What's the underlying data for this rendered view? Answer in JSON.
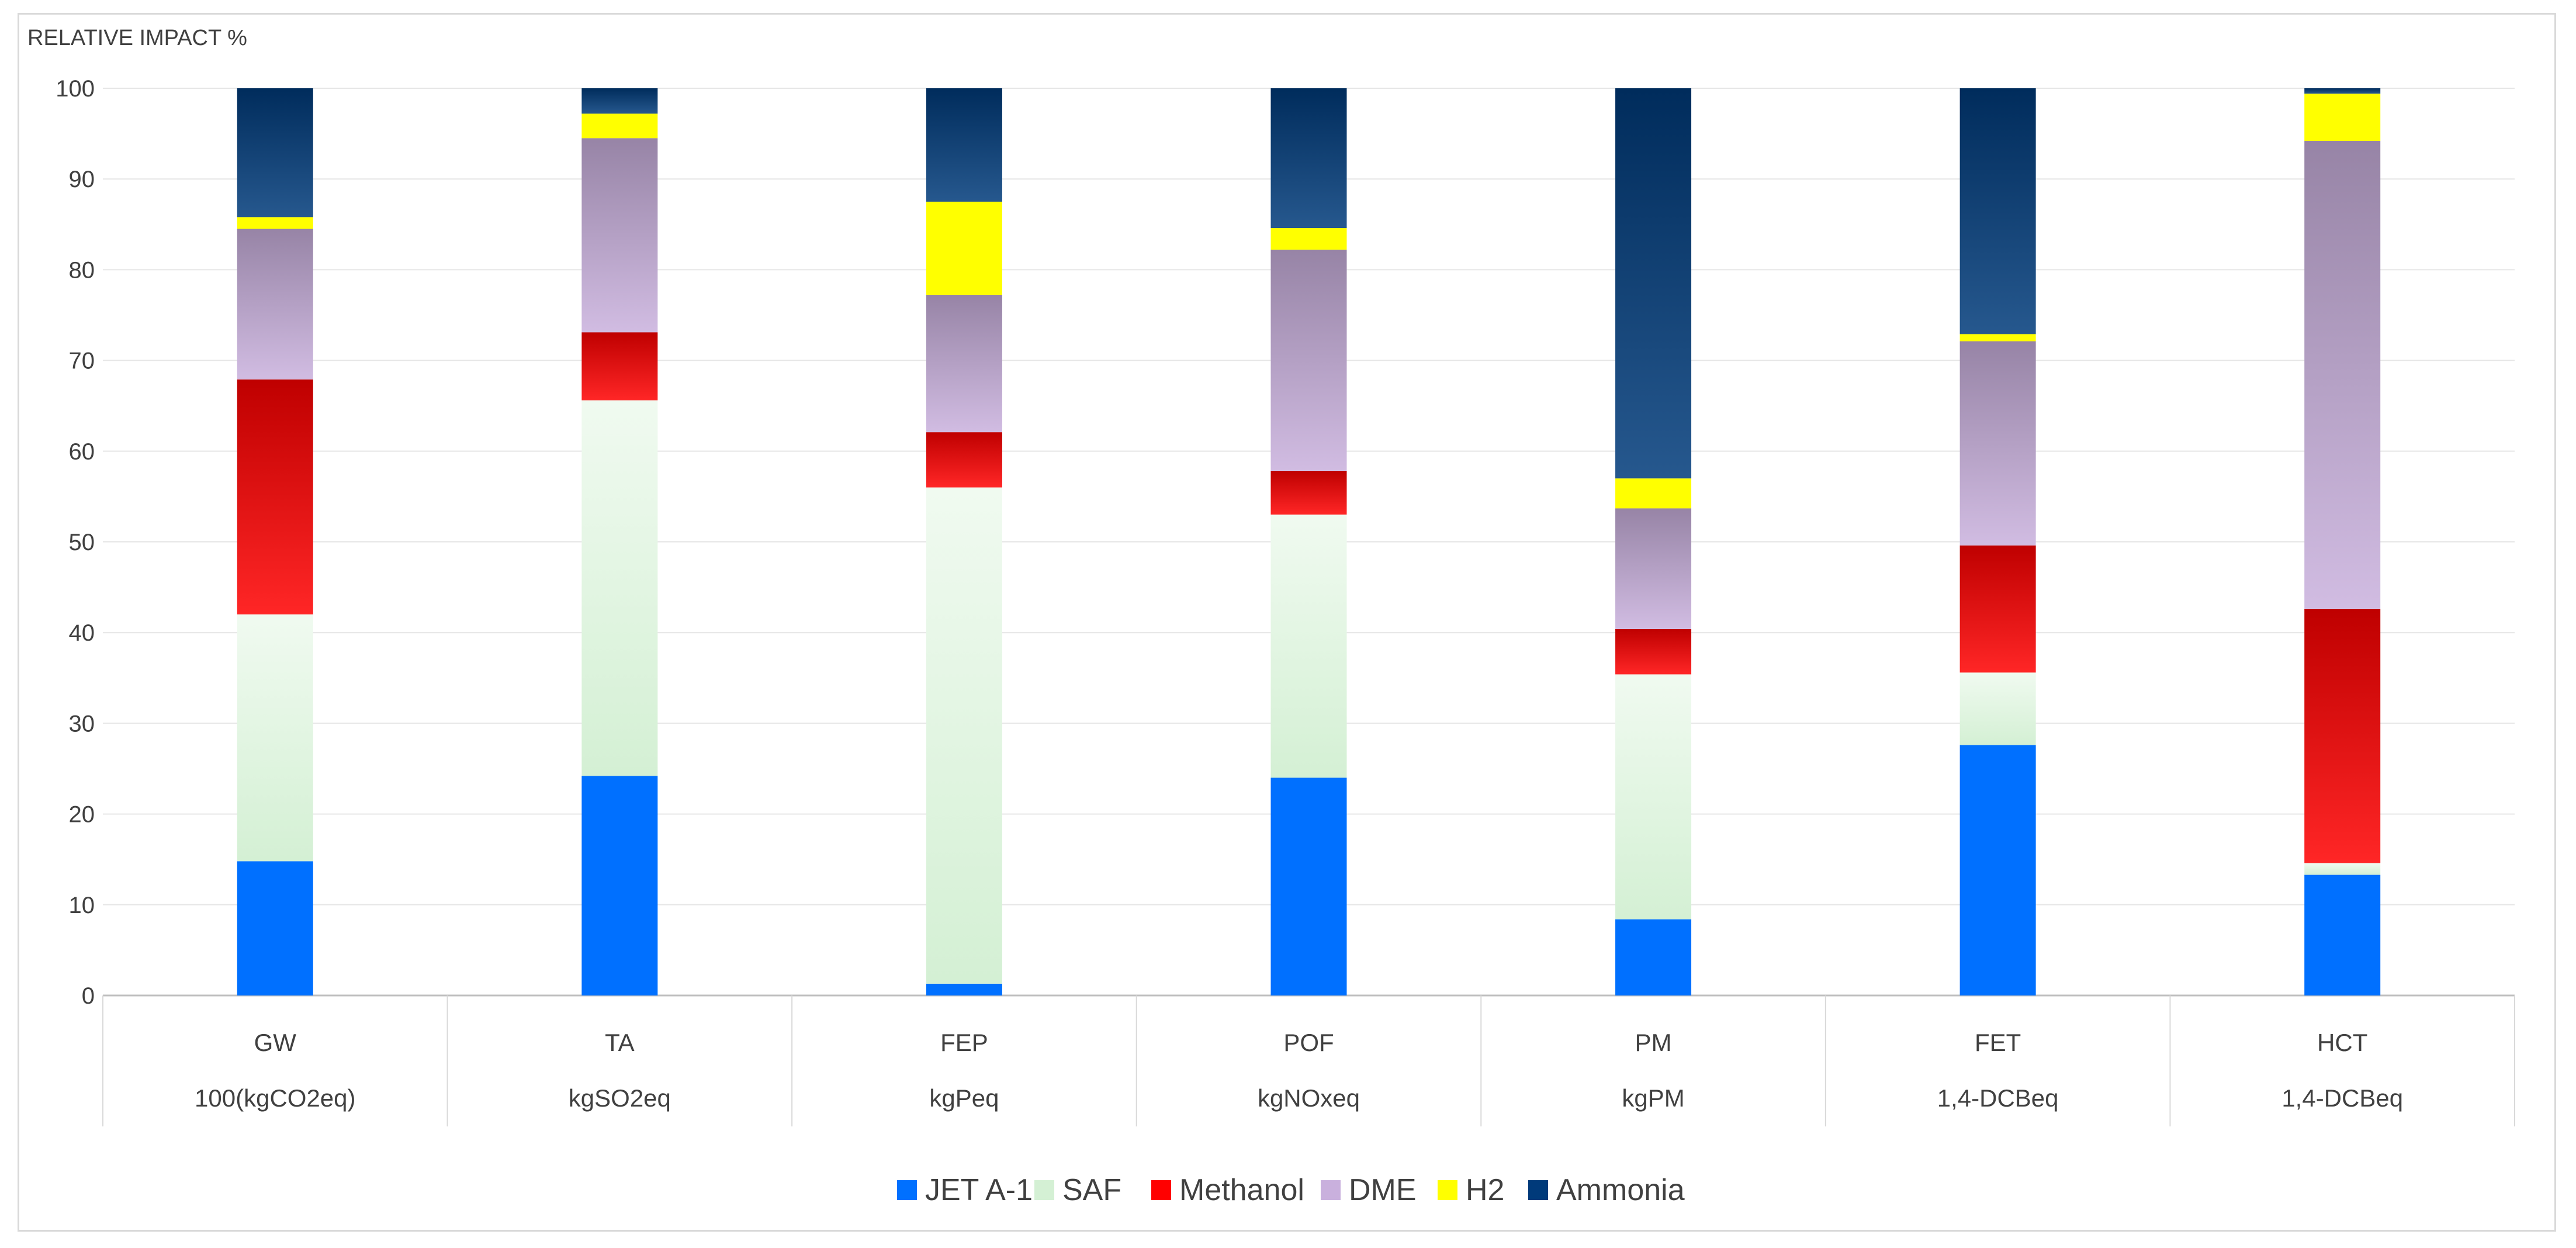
{
  "chart_data": {
    "type": "bar",
    "stacked": true,
    "ylabel": "RELATIVE IMPACT %",
    "ylim": [
      0,
      100
    ],
    "yticks": [
      0,
      10,
      20,
      30,
      40,
      50,
      60,
      70,
      80,
      90,
      100
    ],
    "grid": true,
    "legend_position": "bottom",
    "categories": [
      "GW",
      "TA",
      "FEP",
      "POF",
      "PM",
      "FET",
      "HCT"
    ],
    "category_units": [
      "100(kgCO2eq)",
      "kgSO2eq",
      "kgPeq",
      "kgNOxeq",
      "kgPM",
      "1,4-DCBeq",
      "1,4-DCBeq"
    ],
    "series": [
      {
        "name": "JET A-1",
        "color": "#0070FF",
        "values": [
          14.8,
          24.2,
          1.3,
          24.0,
          8.4,
          27.6,
          13.3
        ]
      },
      {
        "name": "SAF",
        "color": "#D4F0D4",
        "values": [
          27.2,
          41.4,
          54.7,
          29.0,
          27.0,
          8.0,
          1.3
        ]
      },
      {
        "name": "Methanol",
        "color": "#FF0000",
        "values": [
          25.9,
          7.5,
          6.1,
          4.8,
          5.0,
          14.0,
          28.0
        ]
      },
      {
        "name": "DME",
        "color": "#C9B0DD",
        "values": [
          16.6,
          21.4,
          15.1,
          24.4,
          13.3,
          22.5,
          51.6
        ]
      },
      {
        "name": "H2",
        "color": "#FFFF00",
        "values": [
          1.3,
          2.7,
          10.3,
          2.4,
          3.3,
          0.8,
          5.2
        ]
      },
      {
        "name": "Ammonia",
        "color": "#003A7A",
        "values": [
          14.2,
          2.8,
          12.5,
          15.4,
          43.0,
          27.1,
          0.6
        ]
      }
    ]
  }
}
